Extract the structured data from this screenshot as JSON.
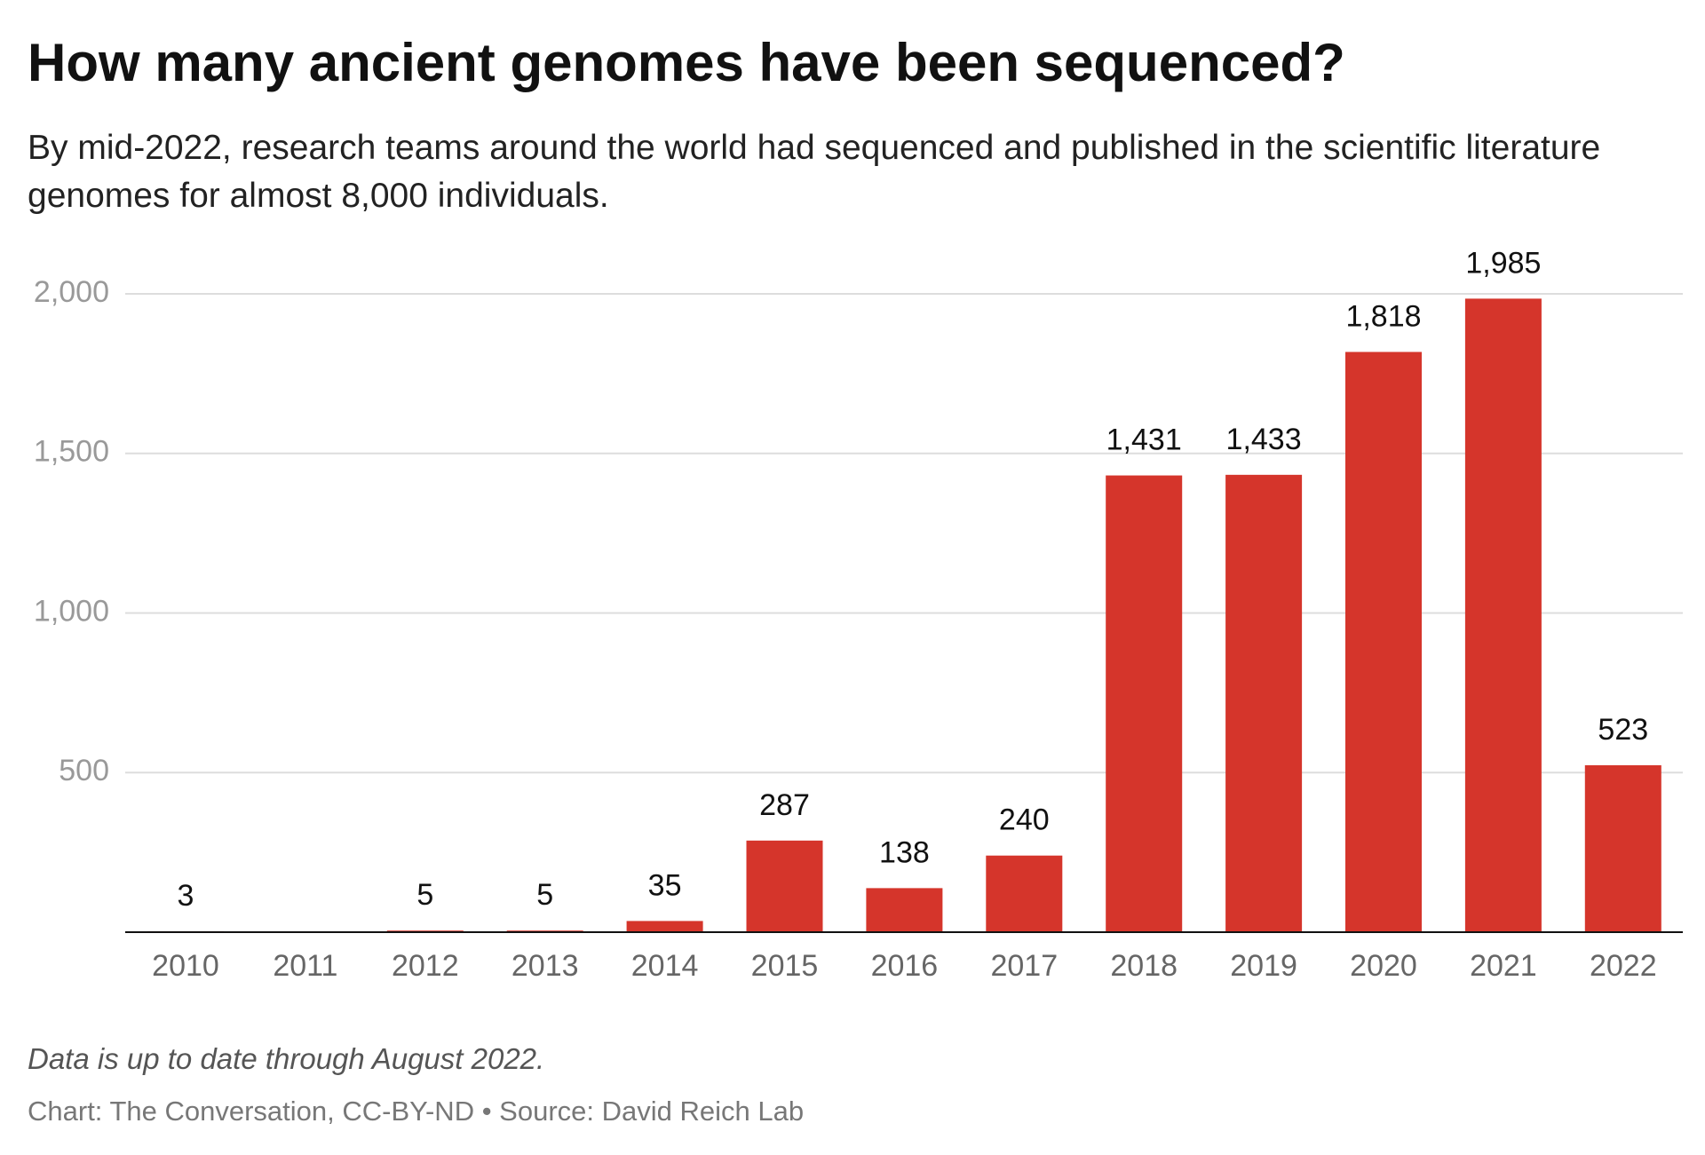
{
  "title": "How many ancient genomes have been sequenced?",
  "subtitle": "By mid-2022, research teams around the world had sequenced and published in the scientific literature genomes for almost 8,000 individuals.",
  "note": "Data is up to date through August 2022.",
  "source": "Chart: The Conversation, CC-BY-ND • Source: David Reich Lab",
  "chart_data": {
    "type": "bar",
    "categories": [
      "2010",
      "2011",
      "2012",
      "2013",
      "2014",
      "2015",
      "2016",
      "2017",
      "2018",
      "2019",
      "2020",
      "2021",
      "2022"
    ],
    "values": [
      3,
      null,
      5,
      5,
      35,
      287,
      138,
      240,
      1431,
      1433,
      1818,
      1985,
      523
    ],
    "value_labels": [
      "3",
      null,
      "5",
      "5",
      "35",
      "287",
      "138",
      "240",
      "1,431",
      "1,433",
      "1,818",
      "1,985",
      "523"
    ],
    "color": "#d5352b",
    "ylim": [
      0,
      2000
    ],
    "yticks": [
      500,
      {
        "value": 1000,
        "label": "1,000"
      },
      {
        "value": 1500,
        "label": "1,500"
      },
      {
        "value": 2000,
        "label": "2,000"
      }
    ],
    "grid": true
  }
}
